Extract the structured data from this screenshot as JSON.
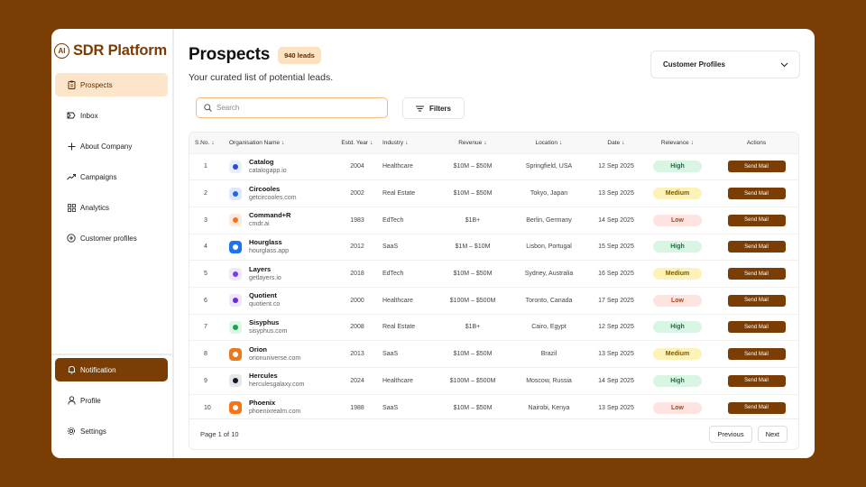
{
  "brand": {
    "logo_text": "AI",
    "name": "SDR Platform"
  },
  "sidebar": {
    "items": [
      {
        "label": "Prospects",
        "icon": "clipboard-icon"
      },
      {
        "label": "Inbox",
        "icon": "inbox-icon"
      },
      {
        "label": "About Company",
        "icon": "plus-icon"
      },
      {
        "label": "Campaigns",
        "icon": "trend-icon"
      },
      {
        "label": "Analytics",
        "icon": "grid-icon"
      },
      {
        "label": "Customer profiles",
        "icon": "plus-circle-icon"
      }
    ],
    "bottom_items": [
      {
        "label": "Notification",
        "icon": "bell-icon"
      },
      {
        "label": "Profile",
        "icon": "user-icon"
      },
      {
        "label": "Settings",
        "icon": "gear-icon"
      }
    ]
  },
  "header": {
    "title": "Prospects",
    "leads_badge": "940 leads",
    "subtitle": "Your curated list of potential leads.",
    "profiles_select": "Customer Profiles"
  },
  "search": {
    "placeholder": "Search",
    "value": ""
  },
  "filters_label": "Filters",
  "table": {
    "columns": [
      "S.No.",
      "Organisation Name",
      "Estd. Year",
      "Industry",
      "Revenue",
      "Location",
      "Date",
      "Relevance",
      "Actions"
    ],
    "action_label": "Send Mail",
    "rows": [
      {
        "sno": "1",
        "name": "Catalog",
        "domain": "catalogapp.io",
        "year": "2004",
        "industry": "Healthcare",
        "revenue": "$10M – $50M",
        "location": "Springfield, USA",
        "date": "12 Sep 2025",
        "relevance": "High",
        "logo_color": "#e8efff",
        "logo_fg": "#2c4bd6"
      },
      {
        "sno": "2",
        "name": "Circooles",
        "domain": "getcircooles.com",
        "year": "2002",
        "industry": "Real Estate",
        "revenue": "$10M – $50M",
        "location": "Tokyo, Japan",
        "date": "13 Sep 2025",
        "relevance": "Medium",
        "logo_color": "#dbe8ff",
        "logo_fg": "#2563eb"
      },
      {
        "sno": "3",
        "name": "Command+R",
        "domain": "cmdr.ai",
        "year": "1983",
        "industry": "EdTech",
        "revenue": "$1B+",
        "location": "Berlin, Germany",
        "date": "14 Sep 2025",
        "relevance": "Low",
        "logo_color": "#fdebe1",
        "logo_fg": "#f97316"
      },
      {
        "sno": "4",
        "name": "Hourglass",
        "domain": "hourglass.app",
        "year": "2012",
        "industry": "SaaS",
        "revenue": "$1M – $10M",
        "location": "Lisbon, Portugal",
        "date": "15 Sep 2025",
        "relevance": "High",
        "logo_color": "#1d72f2",
        "logo_fg": "#ffffff"
      },
      {
        "sno": "5",
        "name": "Layers",
        "domain": "getlayers.io",
        "year": "2018",
        "industry": "EdTech",
        "revenue": "$10M – $50M",
        "location": "Sydney, Australia",
        "date": "16 Sep 2025",
        "relevance": "Medium",
        "logo_color": "#efe6ff",
        "logo_fg": "#7c3aed"
      },
      {
        "sno": "6",
        "name": "Quotient",
        "domain": "quotient.co",
        "year": "2000",
        "industry": "Healthcare",
        "revenue": "$100M – $500M",
        "location": "Toronto, Canada",
        "date": "17 Sep 2025",
        "relevance": "Low",
        "logo_color": "#efe6ff",
        "logo_fg": "#6d28d9"
      },
      {
        "sno": "7",
        "name": "Sisyphus",
        "domain": "sisyphus.com",
        "year": "2008",
        "industry": "Real Estate",
        "revenue": "$1B+",
        "location": "Cairo, Egypt",
        "date": "12 Sep 2025",
        "relevance": "High",
        "logo_color": "#dcf7e6",
        "logo_fg": "#16a34a"
      },
      {
        "sno": "8",
        "name": "Orion",
        "domain": "orionuniverse.com",
        "year": "2013",
        "industry": "SaaS",
        "revenue": "$10M – $50M",
        "location": "Brazil",
        "date": "13 Sep 2025",
        "relevance": "Medium",
        "logo_color": "#ea7a1e",
        "logo_fg": "#ffffff"
      },
      {
        "sno": "9",
        "name": "Hercules",
        "domain": "herculesgalaxy.com",
        "year": "2024",
        "industry": "Healthcare",
        "revenue": "$100M – $500M",
        "location": "Moscow, Russia",
        "date": "14 Sep 2025",
        "relevance": "High",
        "logo_color": "#e5e7eb",
        "logo_fg": "#111827"
      },
      {
        "sno": "10",
        "name": "Phoenix",
        "domain": "phoenixrealm.com",
        "year": "1988",
        "industry": "SaaS",
        "revenue": "$10M – $50M",
        "location": "Nairobi, Kenya",
        "date": "13 Sep 2025",
        "relevance": "Low",
        "logo_color": "#f97316",
        "logo_fg": "#ffffff"
      }
    ]
  },
  "pagination": {
    "info": "Page 1 of 10",
    "previous": "Previous",
    "next": "Next"
  },
  "colors": {
    "brand": "#7a3d04",
    "active_bg": "#fde5cc",
    "search_border": "#f3b77a"
  }
}
